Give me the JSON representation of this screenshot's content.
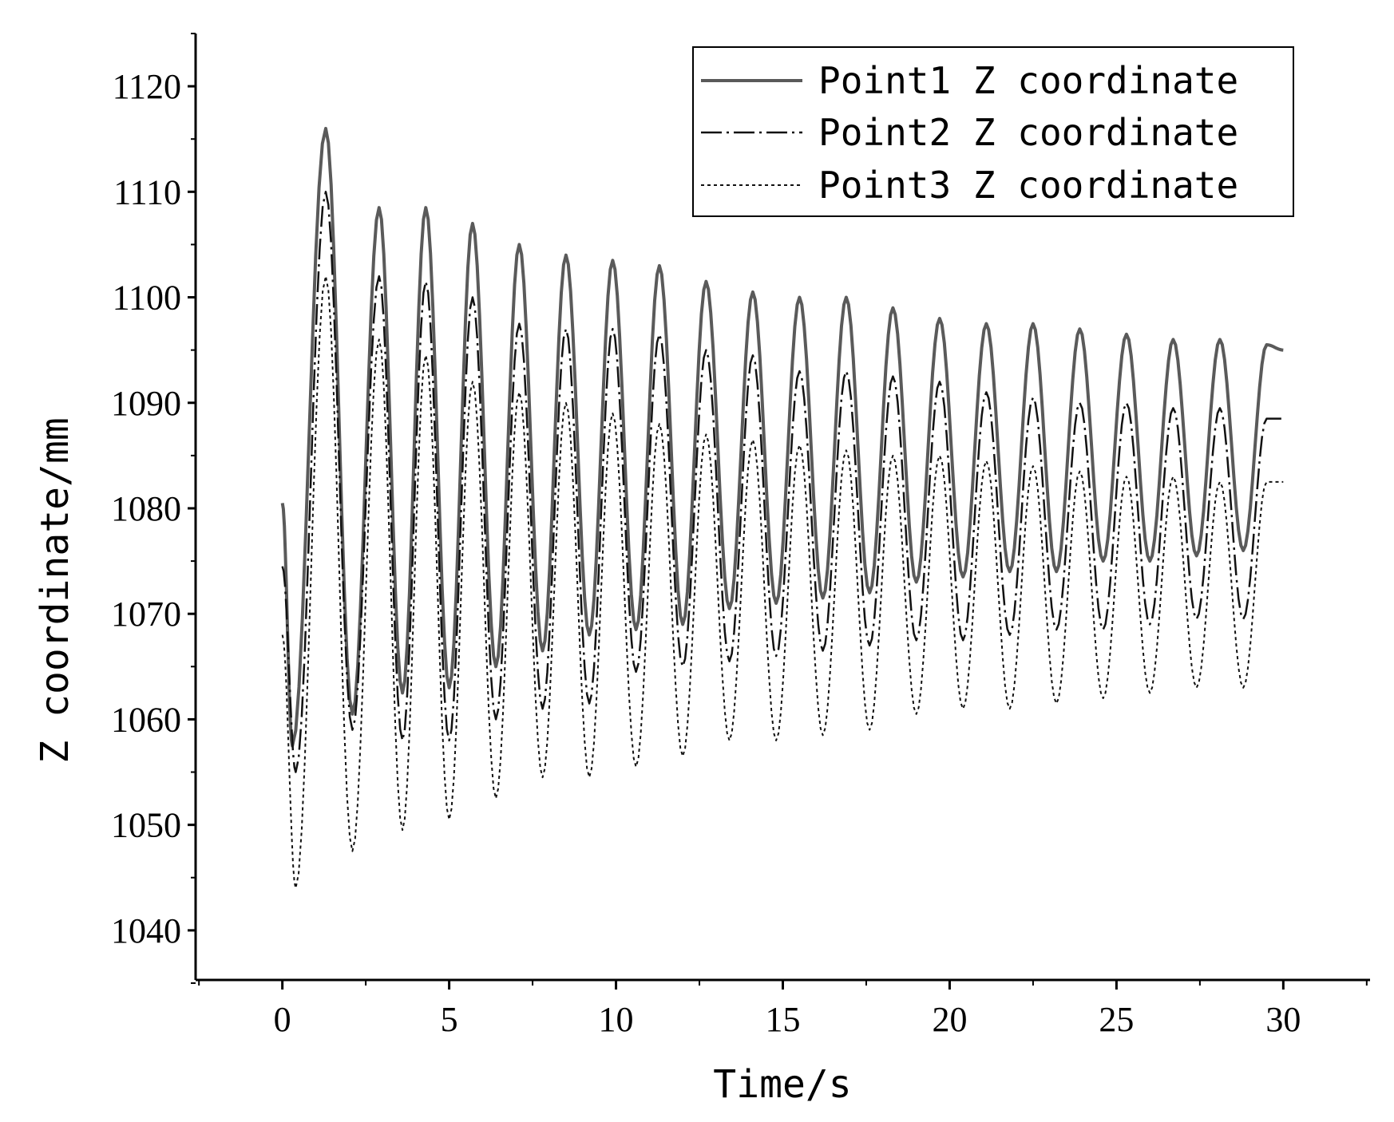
{
  "chart_data": {
    "type": "line",
    "xlabel": "Time/s",
    "ylabel": "Z coordinate/mm",
    "xlim": [
      -2.6,
      32.6
    ],
    "ylim": [
      1035.3,
      1125.0
    ],
    "xticks": [
      0,
      5,
      10,
      15,
      20,
      25,
      30
    ],
    "yticks": [
      1040,
      1050,
      1060,
      1070,
      1080,
      1090,
      1100,
      1110,
      1120
    ],
    "grid": false,
    "legend_position": "top-right",
    "series": [
      {
        "name": "Point1 Z coordinate",
        "style": "solid",
        "color": "#5a5a5a",
        "x": [
          0.0,
          0.3,
          1.3,
          2.1,
          2.9,
          3.6,
          4.3,
          5.0,
          5.7,
          6.4,
          7.1,
          7.8,
          8.5,
          9.2,
          9.9,
          10.6,
          11.3,
          12.0,
          12.7,
          13.4,
          14.1,
          14.8,
          15.5,
          16.2,
          16.9,
          17.6,
          18.3,
          19.0,
          19.7,
          20.4,
          21.1,
          21.8,
          22.5,
          23.2,
          23.9,
          24.6,
          25.3,
          26.0,
          26.7,
          27.4,
          28.1,
          28.8,
          29.5,
          30.0
        ],
        "y": [
          1080.5,
          1057.5,
          1116.0,
          1060.5,
          1108.5,
          1062.5,
          1108.5,
          1063.0,
          1107.0,
          1065.0,
          1105.0,
          1066.5,
          1104.0,
          1068.0,
          1103.5,
          1068.5,
          1103.0,
          1069.0,
          1101.5,
          1070.5,
          1100.5,
          1071.0,
          1100.0,
          1071.5,
          1100.0,
          1072.0,
          1099.0,
          1073.0,
          1098.0,
          1073.5,
          1097.5,
          1074.0,
          1097.5,
          1074.0,
          1097.0,
          1075.0,
          1096.5,
          1075.0,
          1096.0,
          1075.5,
          1096.0,
          1076.0,
          1095.5,
          1095.0
        ]
      },
      {
        "name": "Point2 Z coordinate",
        "style": "dash-dot",
        "color": "#111111",
        "x": [
          0.0,
          0.4,
          1.3,
          2.1,
          2.9,
          3.6,
          4.3,
          5.0,
          5.7,
          6.4,
          7.1,
          7.8,
          8.5,
          9.2,
          9.9,
          10.6,
          11.3,
          12.0,
          12.7,
          13.4,
          14.1,
          14.8,
          15.5,
          16.2,
          16.9,
          17.6,
          18.3,
          19.0,
          19.7,
          20.4,
          21.1,
          21.8,
          22.5,
          23.2,
          23.9,
          24.6,
          25.3,
          26.0,
          26.7,
          27.4,
          28.1,
          28.8,
          29.5,
          30.0
        ],
        "y": [
          1074.5,
          1055.0,
          1110.0,
          1059.0,
          1102.0,
          1058.0,
          1101.5,
          1058.0,
          1100.0,
          1060.0,
          1097.5,
          1061.0,
          1097.0,
          1061.5,
          1097.0,
          1064.5,
          1096.5,
          1065.0,
          1095.0,
          1065.5,
          1094.5,
          1066.0,
          1093.0,
          1066.5,
          1093.0,
          1067.0,
          1092.5,
          1067.5,
          1092.0,
          1067.5,
          1091.0,
          1068.0,
          1090.5,
          1068.5,
          1090.0,
          1068.5,
          1090.0,
          1069.0,
          1089.5,
          1069.5,
          1089.5,
          1069.5,
          1088.5,
          1088.5
        ]
      },
      {
        "name": "Point3 Z coordinate",
        "style": "dotted",
        "color": "#111111",
        "x": [
          0.0,
          0.4,
          1.3,
          2.1,
          2.9,
          3.6,
          4.3,
          5.0,
          5.7,
          6.4,
          7.1,
          7.8,
          8.5,
          9.2,
          9.9,
          10.6,
          11.3,
          12.0,
          12.7,
          13.4,
          14.1,
          14.8,
          15.5,
          16.2,
          16.9,
          17.6,
          18.3,
          19.0,
          19.7,
          20.4,
          21.1,
          21.8,
          22.5,
          23.2,
          23.9,
          24.6,
          25.3,
          26.0,
          26.7,
          27.4,
          28.1,
          28.8,
          29.5,
          30.0
        ],
        "y": [
          1068.0,
          1044.0,
          1102.0,
          1047.5,
          1096.0,
          1049.5,
          1094.5,
          1050.5,
          1092.0,
          1052.5,
          1091.0,
          1054.5,
          1090.0,
          1054.5,
          1089.0,
          1055.5,
          1088.0,
          1056.5,
          1087.0,
          1058.0,
          1086.5,
          1058.0,
          1086.0,
          1058.5,
          1085.5,
          1059.0,
          1085.0,
          1060.5,
          1085.0,
          1061.0,
          1084.5,
          1061.0,
          1084.0,
          1061.5,
          1083.5,
          1062.0,
          1083.0,
          1062.5,
          1083.0,
          1063.0,
          1082.5,
          1063.0,
          1082.5,
          1082.5
        ]
      }
    ]
  }
}
